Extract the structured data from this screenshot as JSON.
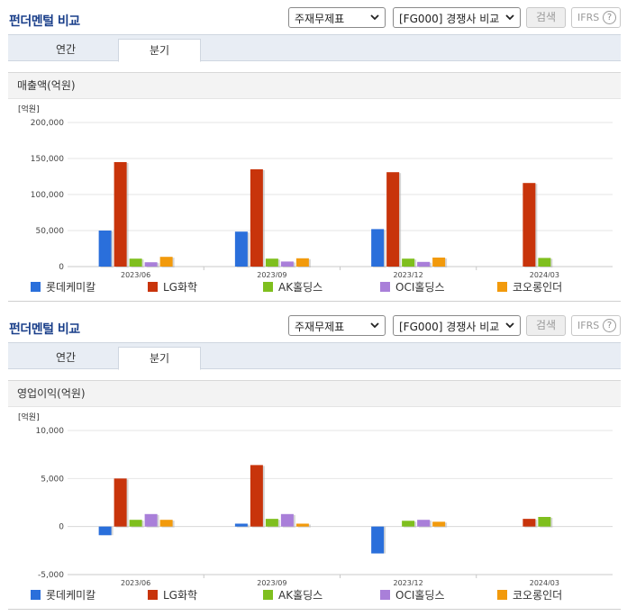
{
  "colors": {
    "series": [
      "#2a6fdb",
      "#c8340b",
      "#7fbf1e",
      "#a97fd9",
      "#f29a0c"
    ],
    "title": "#1a3f8a"
  },
  "sections": [
    {
      "title": "펀더멘털 비교",
      "select1": "주재무제표",
      "select2": "[FG000] 경쟁사 비교",
      "search_label": "검색",
      "ifrs_label": "IFRS",
      "help_label": "?",
      "tabs": [
        "연간",
        "분기"
      ],
      "active_tab": 1,
      "subtitle": "매출액(억원)",
      "chart_data": {
        "type": "bar",
        "unit_label": "[억원]",
        "categories": [
          "2023/06",
          "2023/09",
          "2023/12",
          "2024/03"
        ],
        "ylim": [
          0,
          200000
        ],
        "yticks": [
          0,
          50000,
          100000,
          150000,
          200000
        ],
        "ytick_labels": [
          "0",
          "50,000",
          "100,000",
          "150,000",
          "200,000"
        ],
        "series": [
          {
            "name": "롯데케미칼",
            "values": [
              50000,
              48500,
              52000,
              null
            ]
          },
          {
            "name": "LG화학",
            "values": [
              145000,
              135000,
              131000,
              116000
            ]
          },
          {
            "name": "AK홀딩스",
            "values": [
              11000,
              11000,
              11000,
              12000
            ]
          },
          {
            "name": "OCI홀딩스",
            "values": [
              6000,
              7000,
              6500,
              null
            ]
          },
          {
            "name": "코오롱인더",
            "values": [
              13500,
              11500,
              12500,
              null
            ]
          }
        ]
      }
    },
    {
      "title": "펀더멘털 비교",
      "select1": "주재무제표",
      "select2": "[FG000] 경쟁사 비교",
      "search_label": "검색",
      "ifrs_label": "IFRS",
      "help_label": "?",
      "tabs": [
        "연간",
        "분기"
      ],
      "active_tab": 1,
      "subtitle": "영업이익(억원)",
      "chart_data": {
        "type": "bar",
        "unit_label": "[억원]",
        "categories": [
          "2023/06",
          "2023/09",
          "2023/12",
          "2024/03"
        ],
        "ylim": [
          -5000,
          10000
        ],
        "yticks": [
          -5000,
          0,
          5000,
          10000
        ],
        "ytick_labels": [
          "-5,000",
          "0",
          "5,000",
          "10,000"
        ],
        "series": [
          {
            "name": "롯데케미칼",
            "values": [
              -900,
              300,
              -2800,
              null
            ]
          },
          {
            "name": "LG화학",
            "values": [
              5000,
              6400,
              null,
              800
            ]
          },
          {
            "name": "AK홀딩스",
            "values": [
              700,
              800,
              600,
              1000
            ]
          },
          {
            "name": "OCI홀딩스",
            "values": [
              1300,
              1300,
              700,
              null
            ]
          },
          {
            "name": "코오롱인더",
            "values": [
              700,
              300,
              500,
              null
            ]
          }
        ]
      }
    }
  ]
}
